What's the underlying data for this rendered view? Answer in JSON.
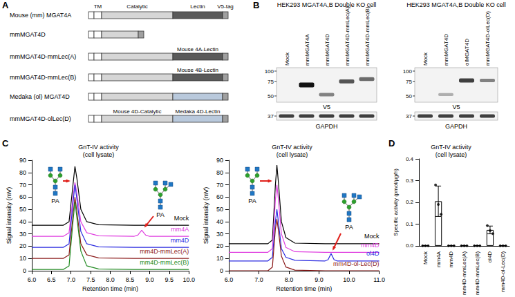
{
  "panel_letters": [
    "A",
    "B",
    "C",
    "D"
  ],
  "domain_map": {
    "header": [
      "TM",
      "Catalytic",
      "Lectin",
      "V5-tag"
    ],
    "tag_color": "#a0a0a0",
    "rows": [
      {
        "label": "Mouse (mm) MGAT4A",
        "catalytic_color": "#d6d6d6",
        "lectin_color": "#5a5a5a"
      },
      {
        "label": "mmMGAT4D",
        "catalytic_color": "#d6d6d6"
      },
      {
        "label": "mmMGAT4D-mmLec(A)",
        "catalytic_color": "#d6d6d6",
        "lectin_color": "#5a5a5a",
        "lectin_note": "Mouse 4A-Lectin"
      },
      {
        "label": "mmMGAT4D-mmLec(B)",
        "catalytic_color": "#d6d6d6",
        "lectin_color": "#5a5a5a",
        "lectin_note": "Mouse 4B-Lectin"
      },
      {
        "label": "Medaka (ol) MGAT4D",
        "catalytic_color": "#d6d6d6",
        "lectin_color": "#b9c9dc"
      },
      {
        "label": "mmMGAT4D-olLec(D)",
        "catalytic_color": "#d6d6d6",
        "lectin_color": "#b9c9dc",
        "catalytic_note": "Mouse 4D-Catalytic",
        "lectin_note": "Medaka 4D-Lectin"
      }
    ]
  },
  "blots": [
    {
      "title": "HEK293 MGAT4A,B Double KO cell",
      "lanes": [
        "Mock",
        "mmMGAT4A",
        "mmMGAT4D",
        "mmMGAT4D-mmLec(A)",
        "mmMGAT4D-mmLec(B)"
      ],
      "probe": "V5",
      "markers": [
        100,
        75,
        50
      ],
      "bands": [
        null,
        68,
        52,
        75,
        80
      ],
      "band_intensity": [
        0,
        1.0,
        0.5,
        0.7,
        0.6
      ],
      "loading_probe": "GAPDH",
      "loading_marker": 37,
      "loading_bands": [
        37,
        37,
        37,
        37,
        37
      ],
      "loading_intensity": [
        0.8,
        0.8,
        0.8,
        0.8,
        0.8
      ]
    },
    {
      "title": "HEK293 MGAT4A,B Double KO cell",
      "lanes": [
        "Mock",
        "mmMGAT4D",
        "olMGAT4D",
        "mmMGAT4D-olLec(D)"
      ],
      "probe": "V5",
      "markers": [
        100,
        75,
        50
      ],
      "bands": [
        null,
        52,
        77,
        77
      ],
      "band_intensity": [
        0,
        0.3,
        0.8,
        0.5
      ],
      "loading_probe": "GAPDH",
      "loading_marker": 37,
      "loading_bands": [
        37,
        37,
        37,
        37
      ],
      "loading_intensity": [
        0.8,
        0.8,
        0.8,
        0.8
      ]
    }
  ],
  "chart_data": [
    {
      "type": "line",
      "title": "GnT-IV activity (cell lysate)",
      "x_label": "Retention time (min)",
      "y_label": "Signal intensity (mV)",
      "x": [
        6.0,
        6.8,
        6.95,
        7.05,
        7.1,
        7.15,
        7.25,
        7.4,
        7.7,
        8.6,
        8.7,
        8.8,
        8.9,
        9.0,
        10.0
      ],
      "series": [
        {
          "name": "Mock",
          "color": "#000000",
          "values": [
            37,
            37,
            40,
            70,
            85,
            75,
            50,
            40,
            37.5,
            37,
            37,
            37,
            37,
            37,
            37
          ]
        },
        {
          "name": "mm4A",
          "color": "#e040e0",
          "values": [
            28,
            28,
            31,
            60,
            72,
            63,
            40,
            31,
            28.5,
            28,
            29,
            33,
            29,
            28,
            28
          ]
        },
        {
          "name": "mm4D",
          "color": "#2a2ae0",
          "values": [
            19,
            19,
            22,
            55,
            70,
            58,
            32,
            22,
            19.5,
            19,
            19,
            19,
            19,
            19,
            19
          ]
        },
        {
          "name": "mm4D-mmLec(A)",
          "color": "#8b1a1a",
          "values": [
            10,
            10,
            13,
            45,
            60,
            48,
            22,
            13,
            10.5,
            10,
            10,
            10,
            10,
            10,
            10
          ]
        },
        {
          "name": "mm4D-mmLec(B)",
          "color": "#228b22",
          "values": [
            1,
            1,
            4,
            40,
            56,
            43,
            16,
            4,
            1.5,
            1,
            1,
            1,
            1,
            1,
            1
          ]
        }
      ],
      "annotations": [
        "PA",
        "PA"
      ],
      "xlim": [
        6,
        10
      ],
      "xticks": [
        {
          "value": 6,
          "label": "6.0"
        },
        {
          "value": 6.5,
          "label": "6.5"
        },
        {
          "value": 7,
          "label": "7.0"
        },
        {
          "value": 7.5,
          "label": "7.5"
        },
        {
          "value": 8,
          "label": "8.0"
        },
        {
          "value": 8.5,
          "label": "8.5"
        },
        {
          "value": 9,
          "label": "9.0"
        },
        {
          "value": 9.5,
          "label": "9.5"
        },
        {
          "value": 10,
          "label": "10.0"
        }
      ],
      "ylim": [
        0,
        90
      ],
      "yticks": [
        0,
        10,
        20,
        30,
        40,
        50,
        60,
        70,
        80,
        90
      ],
      "grid": false
    },
    {
      "type": "line",
      "title": "GnT-IV activity (cell lysate)",
      "x_label": "Retention time (min)",
      "y_label": "Signal intensity (mV)",
      "x": [
        6.0,
        7.3,
        7.45,
        7.55,
        7.6,
        7.65,
        7.75,
        7.9,
        8.2,
        9.2,
        9.3,
        9.4,
        9.5,
        9.6,
        11.0
      ],
      "series": [
        {
          "name": "Mock",
          "color": "#000000",
          "values": [
            22,
            22,
            25,
            70,
            86,
            72,
            40,
            27,
            22.5,
            22,
            22,
            22,
            22,
            22,
            22
          ]
        },
        {
          "name": "mm4D",
          "color": "#e040e0",
          "values": [
            15,
            15,
            18,
            58,
            70,
            58,
            30,
            19,
            15.5,
            15,
            15,
            15,
            15,
            15,
            15
          ]
        },
        {
          "name": "ol4D",
          "color": "#2a2ae0",
          "values": [
            8,
            8,
            11,
            40,
            50,
            40,
            18,
            11,
            8.5,
            8,
            9,
            14,
            9,
            8,
            8
          ]
        },
        {
          "name": "mm4D-ol-Lec(D)",
          "color": "#8b1a1a",
          "values": [
            0,
            0,
            3,
            34,
            42,
            33,
            12,
            3,
            0.5,
            0,
            0,
            0,
            0,
            0,
            0
          ]
        }
      ],
      "annotations": [
        "PA",
        "PA"
      ],
      "xlim": [
        6,
        11
      ],
      "xticks": [
        {
          "value": 6,
          "label": "6.0"
        },
        {
          "value": 7,
          "label": "7.0"
        },
        {
          "value": 8,
          "label": "8.0"
        },
        {
          "value": 9,
          "label": "9.0"
        },
        {
          "value": 10,
          "label": "10.0"
        },
        {
          "value": 11,
          "label": "11.0"
        }
      ],
      "ylim": [
        0,
        90
      ],
      "yticks": [
        0,
        10,
        20,
        30,
        40,
        50,
        60,
        70,
        80,
        90
      ],
      "grid": false
    },
    {
      "type": "bar",
      "title": "GnT-IV activity (cell lysate)",
      "y_label": "Specific activity (pmol/µg/h)",
      "categories": [
        "Mock",
        "mm4A",
        "mm4D",
        "mm4D-mmLec(A)",
        "mm4D-mmLec(B)",
        "ol4D",
        "mm4D-ol-Lec(D)"
      ],
      "values": [
        0,
        0.205,
        0,
        0,
        0,
        0.073,
        0
      ],
      "errors": [
        0,
        0.07,
        0,
        0,
        0,
        0.018,
        0
      ],
      "points": [
        [
          0,
          0,
          0
        ],
        [
          0.28,
          0.19,
          0.145
        ],
        [
          0,
          0,
          0
        ],
        [
          0,
          0,
          0
        ],
        [
          0,
          0,
          0
        ],
        [
          0.093,
          0.07,
          0.056
        ],
        [
          0,
          0,
          0
        ]
      ],
      "color": "#ffffff",
      "ylim": [
        0,
        0.4
      ],
      "yticks": [
        {
          "value": 0,
          "label": "0.0"
        },
        {
          "value": 0.1,
          "label": "0.1"
        },
        {
          "value": 0.2,
          "label": "0.2"
        },
        {
          "value": 0.3,
          "label": "0.3"
        },
        {
          "value": 0.4,
          "label": "0.4"
        }
      ],
      "grid": false
    }
  ]
}
